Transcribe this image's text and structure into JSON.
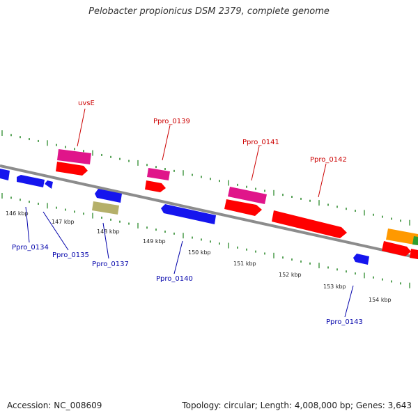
{
  "header": {
    "title": "Pelobacter propionicus DSM 2379, complete genome"
  },
  "footer": {
    "accession": "Accession: NC_008609",
    "summary": "Topology: circular; Length: 4,008,000 bp; Genes: 3,643"
  },
  "colors": {
    "backbone": "#8c8c8c",
    "tick": "#2e8b2e",
    "forward_label": "#cc0000",
    "reverse_label": "#0000aa",
    "gene_red": "#ff0000",
    "gene_pink": "#e0158a",
    "gene_blue": "#1515ee",
    "gene_olive": "#b5b06a",
    "gene_orange": "#ff9900",
    "gene_green": "#2e9e2e"
  },
  "scale_labels": [
    "146 kbp",
    "147 kbp",
    "148 kbp",
    "149 kbp",
    "150 kbp",
    "151 kbp",
    "152 kbp",
    "153 kbp",
    "154 kbp"
  ],
  "forward_gene_labels": [
    "uvsE",
    "Ppro_0139",
    "Ppro_0141",
    "Ppro_0142"
  ],
  "reverse_gene_labels": [
    "Ppro_0134",
    "Ppro_0135",
    "Ppro_0137",
    "Ppro_0140",
    "Ppro_0143"
  ]
}
